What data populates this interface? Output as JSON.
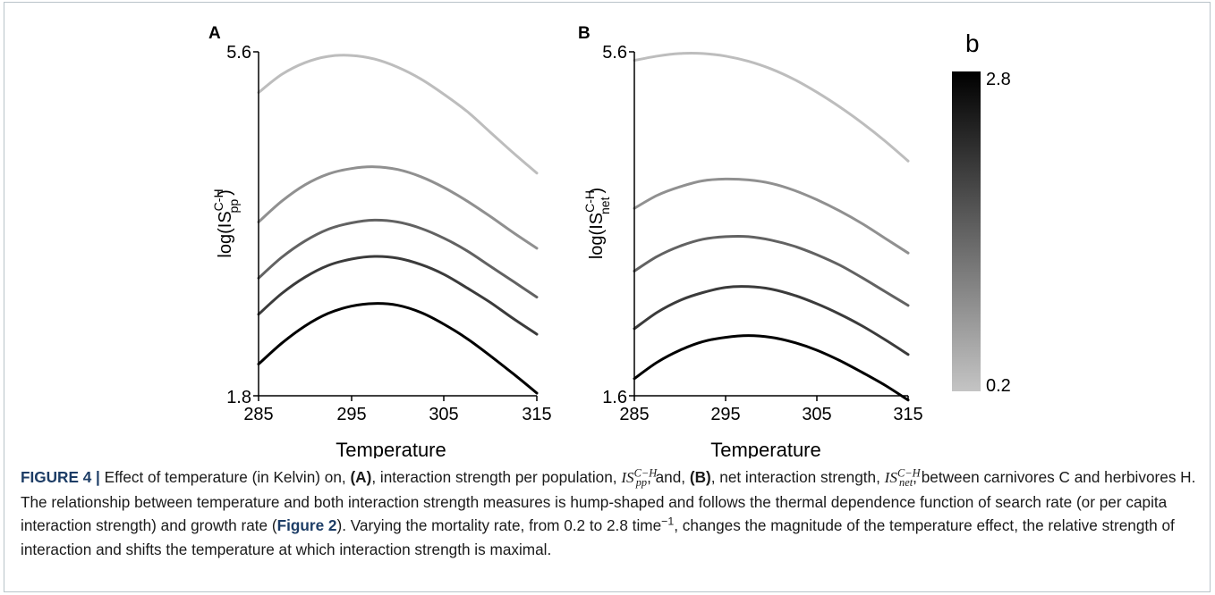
{
  "chart_data": [
    {
      "panel": "A",
      "type": "line",
      "xlabel": "Temperature",
      "ylabel": "log(IS",
      "ylabel_sup": "C-H",
      "ylabel_sub": "pp",
      "ylabel_close": ")",
      "x_ticks": [
        "285",
        "295",
        "305",
        "315"
      ],
      "y_ticks": [
        "5.6",
        "1.8"
      ],
      "xlim": [
        285,
        315
      ],
      "ylim": [
        1.8,
        5.6
      ],
      "x": [
        285,
        287.5,
        290,
        292.5,
        295,
        297.5,
        300,
        302.5,
        305,
        307.5,
        310,
        312.5,
        315
      ],
      "series": [
        {
          "b": 0.2,
          "color": "#bdbdbd",
          "values": [
            5.15,
            5.35,
            5.48,
            5.55,
            5.56,
            5.52,
            5.43,
            5.3,
            5.13,
            4.94,
            4.71,
            4.48,
            4.26
          ]
        },
        {
          "b": 0.85,
          "color": "#909090",
          "values": [
            3.72,
            3.95,
            4.13,
            4.25,
            4.31,
            4.33,
            4.3,
            4.22,
            4.1,
            3.95,
            3.78,
            3.6,
            3.43
          ]
        },
        {
          "b": 1.5,
          "color": "#626262",
          "values": [
            3.1,
            3.33,
            3.51,
            3.64,
            3.71,
            3.74,
            3.72,
            3.65,
            3.54,
            3.4,
            3.23,
            3.06,
            2.89
          ]
        },
        {
          "b": 2.15,
          "color": "#3b3b3b",
          "values": [
            2.7,
            2.93,
            3.11,
            3.24,
            3.31,
            3.34,
            3.32,
            3.25,
            3.14,
            2.99,
            2.83,
            2.65,
            2.48
          ]
        },
        {
          "b": 2.8,
          "color": "#000000",
          "values": [
            2.15,
            2.38,
            2.57,
            2.71,
            2.79,
            2.82,
            2.8,
            2.72,
            2.59,
            2.43,
            2.24,
            2.04,
            1.83
          ]
        }
      ]
    },
    {
      "panel": "B",
      "type": "line",
      "xlabel": "Temperature",
      "ylabel": "log(IS",
      "ylabel_sup": "C-H",
      "ylabel_sub": "net",
      "ylabel_close": ")",
      "x_ticks": [
        "285",
        "295",
        "305",
        "315"
      ],
      "y_ticks": [
        "5.6",
        "1.6"
      ],
      "xlim": [
        285,
        315
      ],
      "ylim": [
        1.6,
        5.6
      ],
      "x": [
        285,
        287.5,
        290,
        292.5,
        295,
        297.5,
        300,
        302.5,
        305,
        307.5,
        310,
        312.5,
        315
      ],
      "series": [
        {
          "b": 0.2,
          "color": "#bdbdbd",
          "values": [
            5.5,
            5.55,
            5.58,
            5.58,
            5.55,
            5.49,
            5.4,
            5.28,
            5.13,
            4.96,
            4.77,
            4.56,
            4.33
          ]
        },
        {
          "b": 0.85,
          "color": "#909090",
          "values": [
            3.78,
            3.93,
            4.03,
            4.1,
            4.12,
            4.11,
            4.07,
            3.99,
            3.88,
            3.75,
            3.6,
            3.43,
            3.26
          ]
        },
        {
          "b": 1.5,
          "color": "#626262",
          "values": [
            3.05,
            3.22,
            3.34,
            3.42,
            3.45,
            3.45,
            3.41,
            3.34,
            3.24,
            3.12,
            2.97,
            2.81,
            2.65
          ]
        },
        {
          "b": 2.15,
          "color": "#3b3b3b",
          "values": [
            2.38,
            2.57,
            2.71,
            2.8,
            2.86,
            2.87,
            2.84,
            2.77,
            2.67,
            2.55,
            2.41,
            2.25,
            2.08
          ]
        },
        {
          "b": 2.8,
          "color": "#000000",
          "values": [
            1.8,
            1.99,
            2.13,
            2.23,
            2.28,
            2.3,
            2.28,
            2.22,
            2.13,
            2.01,
            1.87,
            1.72,
            1.55
          ]
        }
      ]
    }
  ],
  "colorbar": {
    "title": "b",
    "max_label": "2.8",
    "min_label": "0.2",
    "color_top": "#000000",
    "color_bottom": "#c4c4c4"
  },
  "caption": {
    "figure_label": "FIGURE 4 |",
    "t1": " Effect of temperature (in Kelvin) on, ",
    "a_label": "(A)",
    "t2": ", interaction strength per population, ",
    "is1_base": "IS",
    "is1_sup": "C−H",
    "is1_sub": "pp",
    "t3": ", and, ",
    "b_label": "(B)",
    "t4": ", net interaction strength, ",
    "is2_base": "IS",
    "is2_sup": "C−H",
    "is2_sub": "net",
    "t5": ", between carnivores C and herbivores H. The relationship between temperature and both interaction strength measures is hump-shaped and follows the thermal dependence function of search rate (or per capita interaction strength) and growth rate (",
    "fig2_ref": "Figure 2",
    "t6": "). Varying the mortality rate, from 0.2 to 2.8 time",
    "t6_sup": "−1",
    "t7": ", changes the magnitude of the temperature effect, the relative strength of interaction and shifts the temperature at which interaction strength is maximal."
  }
}
